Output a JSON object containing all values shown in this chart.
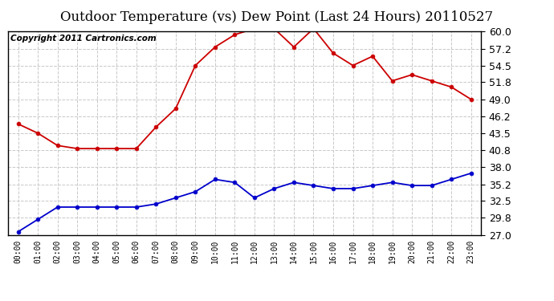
{
  "title": "Outdoor Temperature (vs) Dew Point (Last 24 Hours) 20110527",
  "copyright": "Copyright 2011 Cartronics.com",
  "x_labels": [
    "00:00",
    "01:00",
    "02:00",
    "03:00",
    "04:00",
    "05:00",
    "06:00",
    "07:00",
    "08:00",
    "09:00",
    "10:00",
    "11:00",
    "12:00",
    "13:00",
    "14:00",
    "15:00",
    "16:00",
    "17:00",
    "18:00",
    "19:00",
    "20:00",
    "21:00",
    "22:00",
    "23:00"
  ],
  "temp_red": [
    45.0,
    43.5,
    41.5,
    41.0,
    41.0,
    41.0,
    41.0,
    44.5,
    47.5,
    54.5,
    57.5,
    59.5,
    60.5,
    60.5,
    57.5,
    60.5,
    56.5,
    54.5,
    56.0,
    52.0,
    53.0,
    52.0,
    51.0,
    49.0
  ],
  "dew_blue": [
    27.5,
    29.5,
    31.5,
    31.5,
    31.5,
    31.5,
    31.5,
    32.0,
    33.0,
    34.0,
    36.0,
    35.5,
    33.0,
    34.5,
    35.5,
    35.0,
    34.5,
    34.5,
    35.0,
    35.5,
    35.0,
    35.0,
    36.0,
    37.0
  ],
  "y_ticks": [
    27.0,
    29.8,
    32.5,
    35.2,
    38.0,
    40.8,
    43.5,
    46.2,
    49.0,
    51.8,
    54.5,
    57.2,
    60.0
  ],
  "ylim": [
    27.0,
    60.0
  ],
  "bg_color": "#ffffff",
  "grid_color": "#c8c8c8",
  "red_color": "#cc0000",
  "blue_color": "#0000cc",
  "title_fontsize": 12,
  "copyright_fontsize": 7.5,
  "ytick_fontsize": 9,
  "xtick_fontsize": 7
}
